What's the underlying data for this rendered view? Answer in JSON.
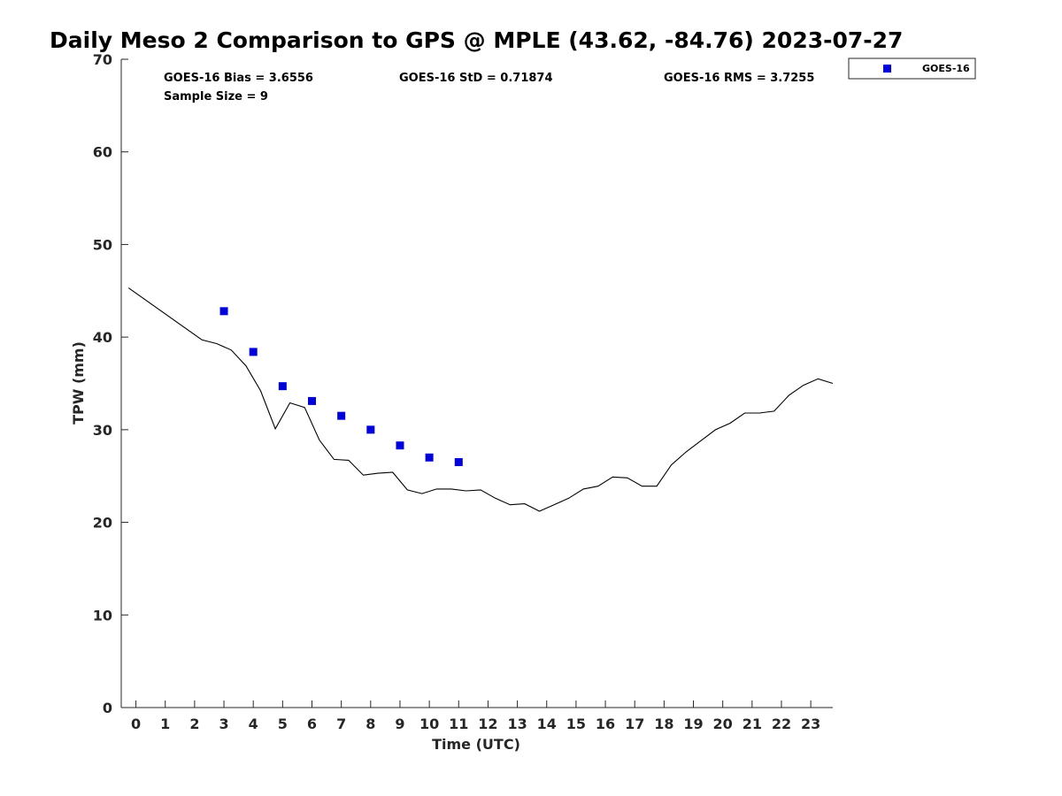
{
  "chart_data": {
    "type": "line",
    "title": "Daily Meso 2 Comparison to GPS @ MPLE (43.62, -84.76) 2023-07-27",
    "xlabel": "Time (UTC)",
    "ylabel": "TPW (mm)",
    "xlim": [
      -0.5,
      23.75
    ],
    "ylim": [
      0,
      70
    ],
    "x_ticks": [
      "0",
      "1",
      "2",
      "3",
      "4",
      "5",
      "6",
      "7",
      "8",
      "9",
      "10",
      "11",
      "12",
      "13",
      "14",
      "15",
      "16",
      "17",
      "18",
      "19",
      "20",
      "21",
      "22",
      "23"
    ],
    "y_ticks": [
      "0",
      "10",
      "20",
      "30",
      "40",
      "50",
      "60",
      "70"
    ],
    "grid": false,
    "legend_position": "top-right",
    "stats": {
      "bias": "GOES-16 Bias = 3.6556",
      "std": "GOES-16 StD = 0.71874",
      "rms": "GOES-16 RMS = 3.7255",
      "sample": "Sample Size = 9"
    },
    "series": [
      {
        "type": "line",
        "color": "#000000",
        "x": [
          -0.25,
          2.25,
          2.75,
          3.25,
          3.75,
          4.25,
          4.75,
          5.25,
          5.75,
          6.25,
          6.75,
          7.25,
          7.75,
          8.25,
          8.75,
          9.25,
          9.75,
          10.25,
          10.75,
          11.25,
          11.75,
          12.25,
          12.75,
          13.25,
          13.75,
          14.25,
          14.75,
          15.25,
          15.75,
          16.25,
          16.75,
          17.25,
          17.75,
          18.25,
          18.75,
          19.25,
          19.75,
          20.25,
          20.75,
          21.25,
          21.75,
          22.25,
          22.75,
          23.25,
          23.75
        ],
        "y": [
          45.3,
          39.7,
          39.3,
          38.6,
          36.9,
          34.2,
          30.1,
          32.9,
          32.4,
          28.9,
          26.8,
          26.7,
          25.1,
          25.3,
          25.4,
          23.5,
          23.1,
          23.6,
          23.6,
          23.4,
          23.5,
          22.6,
          21.9,
          22.0,
          21.2,
          21.9,
          22.6,
          23.6,
          23.9,
          24.9,
          24.8,
          23.9,
          23.9,
          26.2,
          27.6,
          28.8,
          30.0,
          30.7,
          31.8,
          31.8,
          32.0,
          33.7,
          34.8,
          35.5,
          35.0
        ]
      },
      {
        "name": "GOES-16",
        "type": "scatter",
        "color": "#0000dd",
        "x": [
          3,
          4,
          5,
          6,
          7,
          8,
          9,
          10,
          11
        ],
        "y": [
          42.8,
          38.4,
          34.7,
          33.1,
          31.5,
          30.0,
          28.3,
          27.0,
          26.5
        ]
      }
    ]
  }
}
